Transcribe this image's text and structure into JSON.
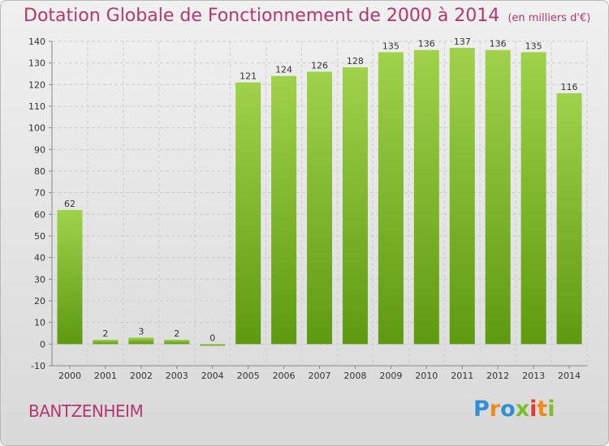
{
  "chart_data": {
    "type": "bar",
    "title": "Dotation Globale de Fonctionnement de 2000 à 2014",
    "subtitle": "(en milliers d'€)",
    "categories": [
      "2000",
      "2001",
      "2002",
      "2003",
      "2004",
      "2005",
      "2006",
      "2007",
      "2008",
      "2009",
      "2010",
      "2011",
      "2012",
      "2013",
      "2014"
    ],
    "values": [
      62,
      2,
      3,
      2,
      0,
      121,
      124,
      126,
      128,
      135,
      136,
      137,
      136,
      135,
      116
    ],
    "ylim": [
      -10,
      140
    ],
    "yticks": [
      -10,
      0,
      10,
      20,
      30,
      40,
      50,
      60,
      70,
      80,
      90,
      100,
      110,
      120,
      130,
      140
    ],
    "grid": true,
    "bar_color": "#7fbf2f"
  },
  "commune": "BANTZENHEIM",
  "logo": {
    "letters": [
      "P",
      "r",
      "o",
      "x",
      "i",
      "t",
      "i"
    ],
    "colors": [
      "#2d8fd5",
      "#f08a1c",
      "#2d8fd5",
      "#7bbf2a",
      "#e03a2e",
      "#f08a1c",
      "#7bbf2a"
    ]
  }
}
